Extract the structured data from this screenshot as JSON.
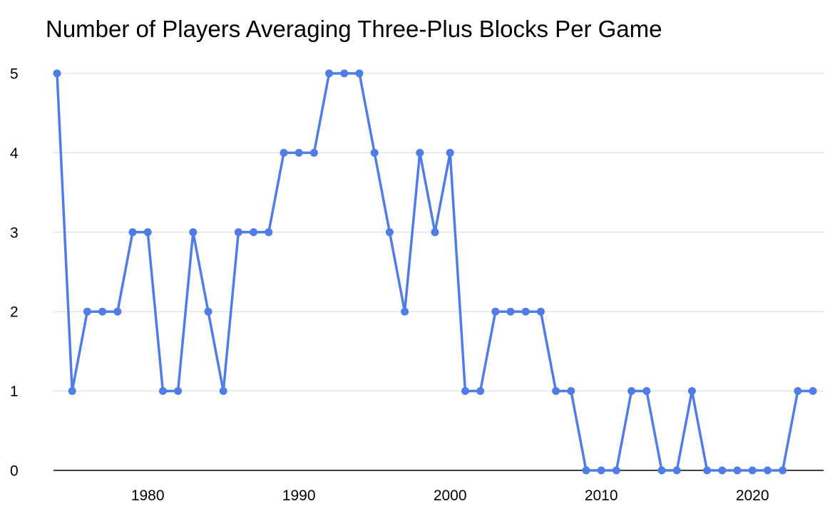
{
  "chart_data": {
    "type": "line",
    "title": "Number of Players Averaging Three-Plus Blocks Per Game",
    "xlabel": "",
    "ylabel": "",
    "x": [
      1974,
      1975,
      1976,
      1977,
      1978,
      1979,
      1980,
      1981,
      1982,
      1983,
      1984,
      1985,
      1986,
      1987,
      1988,
      1989,
      1990,
      1991,
      1992,
      1993,
      1994,
      1995,
      1996,
      1997,
      1998,
      1999,
      2000,
      2001,
      2002,
      2003,
      2004,
      2005,
      2006,
      2007,
      2008,
      2009,
      2010,
      2011,
      2012,
      2013,
      2014,
      2015,
      2016,
      2017,
      2018,
      2019,
      2020,
      2021,
      2022,
      2023,
      2024
    ],
    "values": [
      5,
      1,
      2,
      2,
      2,
      3,
      3,
      1,
      1,
      3,
      2,
      1,
      3,
      3,
      3,
      4,
      4,
      4,
      5,
      5,
      5,
      4,
      3,
      2,
      4,
      3,
      4,
      1,
      1,
      2,
      2,
      2,
      2,
      1,
      1,
      0,
      0,
      0,
      1,
      1,
      0,
      0,
      1,
      0,
      0,
      0,
      0,
      0,
      0,
      1,
      1
    ],
    "ylim": [
      0,
      5
    ],
    "yticks": [
      0,
      1,
      2,
      3,
      4,
      5
    ],
    "xticks": [
      1980,
      1990,
      2000,
      2010,
      2020
    ],
    "grid": "horizontal",
    "legend_position": "none",
    "line_color": "#4f7ce5",
    "marker_color": "#4f7ce5",
    "grid_color": "#d9d9d9",
    "axis_color": "#000000",
    "text_color": "#000000"
  }
}
